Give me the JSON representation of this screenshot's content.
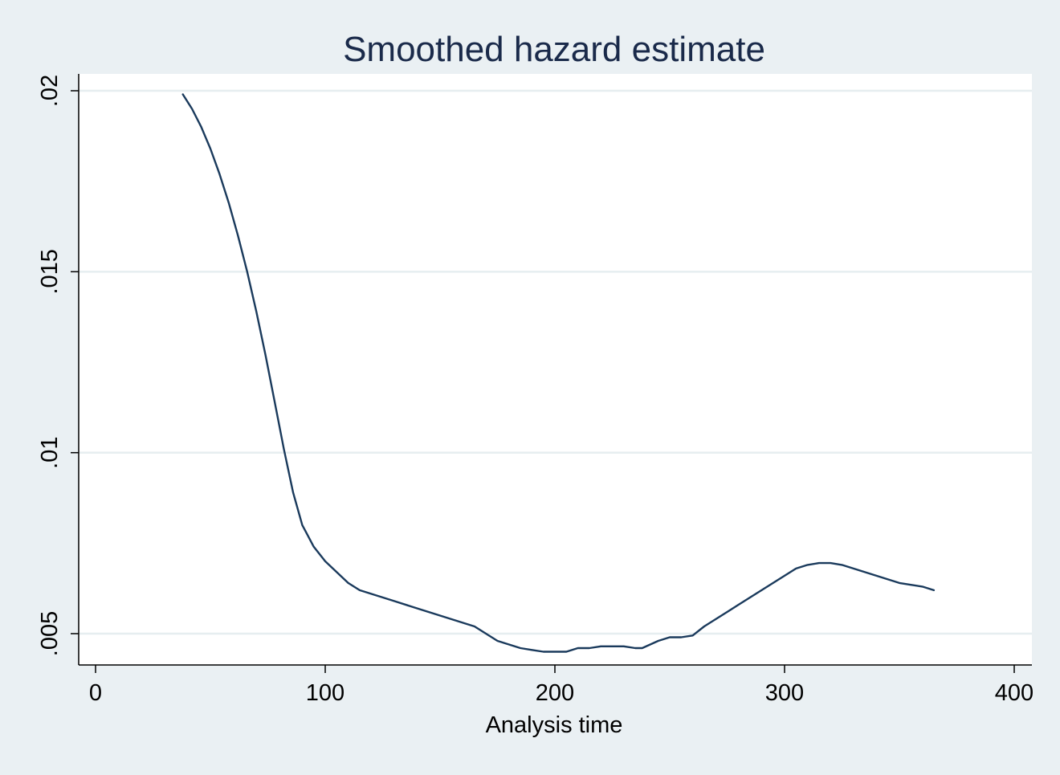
{
  "chart_data": {
    "type": "line",
    "title": "Smoothed hazard estimate",
    "xlabel": "Analysis time",
    "ylabel": "",
    "xlim": [
      0,
      400
    ],
    "ylim": [
      0.004,
      0.0205
    ],
    "x_ticks": [
      0,
      100,
      200,
      300,
      400
    ],
    "x_tick_labels": [
      "0",
      "100",
      "200",
      "300",
      "400"
    ],
    "y_ticks": [
      0.005,
      0.01,
      0.015,
      0.02
    ],
    "y_tick_labels": [
      ".005",
      ".01",
      ".015",
      ".02"
    ],
    "grid": "horizontal",
    "legend": "none",
    "series": [
      {
        "x": [
          38,
          42,
          46,
          50,
          54,
          58,
          62,
          66,
          70,
          74,
          78,
          82,
          86,
          90,
          95,
          100,
          105,
          110,
          115,
          120,
          130,
          140,
          150,
          155,
          160,
          165,
          170,
          175,
          180,
          185,
          190,
          195,
          200,
          205,
          210,
          215,
          220,
          225,
          230,
          235,
          238,
          245,
          250,
          255,
          260,
          265,
          270,
          275,
          280,
          285,
          290,
          295,
          300,
          305,
          310,
          315,
          320,
          325,
          330,
          335,
          340,
          345,
          350,
          355,
          360,
          365
        ],
        "y": [
          0.0199,
          0.0195,
          0.019,
          0.0184,
          0.0177,
          0.0169,
          0.016,
          0.015,
          0.0139,
          0.0127,
          0.0114,
          0.0101,
          0.0089,
          0.008,
          0.0074,
          0.007,
          0.0067,
          0.0064,
          0.0062,
          0.0061,
          0.0059,
          0.0057,
          0.0055,
          0.0054,
          0.0053,
          0.0052,
          0.005,
          0.0048,
          0.0047,
          0.0046,
          0.00455,
          0.0045,
          0.0045,
          0.0045,
          0.0046,
          0.0046,
          0.00465,
          0.00465,
          0.00465,
          0.0046,
          0.0046,
          0.0048,
          0.0049,
          0.0049,
          0.00495,
          0.0052,
          0.0054,
          0.0056,
          0.0058,
          0.006,
          0.0062,
          0.0064,
          0.0066,
          0.0068,
          0.0069,
          0.00695,
          0.00695,
          0.0069,
          0.0068,
          0.0067,
          0.0066,
          0.0065,
          0.0064,
          0.00635,
          0.0063,
          0.0062
        ]
      }
    ],
    "colors": {
      "background": "#eaf0f3",
      "plot_background": "#ffffff",
      "gridline": "#e6eef0",
      "line": "#1a3a5c",
      "title": "#1a2a4a",
      "axis": "#000000"
    }
  }
}
